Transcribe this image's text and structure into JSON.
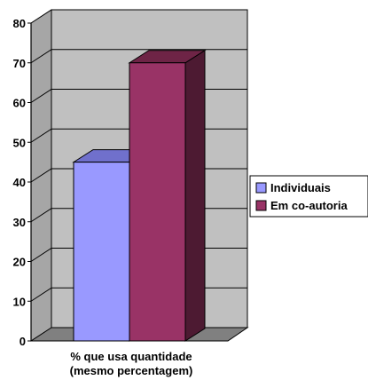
{
  "chart_data": {
    "type": "bar",
    "categories": [
      "% que usa quantidade (mesmo percentagem)"
    ],
    "category_lines": [
      "% que usa quantidade",
      "(mesmo percentagem)"
    ],
    "series": [
      {
        "name": "Individuais",
        "values": [
          45
        ],
        "color": "#9999ff"
      },
      {
        "name": "Em co-autoria",
        "values": [
          70
        ],
        "color": "#993366"
      }
    ],
    "ylim": [
      0,
      80
    ],
    "yticks": [
      0,
      10,
      20,
      30,
      40,
      50,
      60,
      70,
      80
    ],
    "grid": true,
    "legend_position": "right",
    "style": "3d",
    "wall_color": "#c0c0c0"
  }
}
